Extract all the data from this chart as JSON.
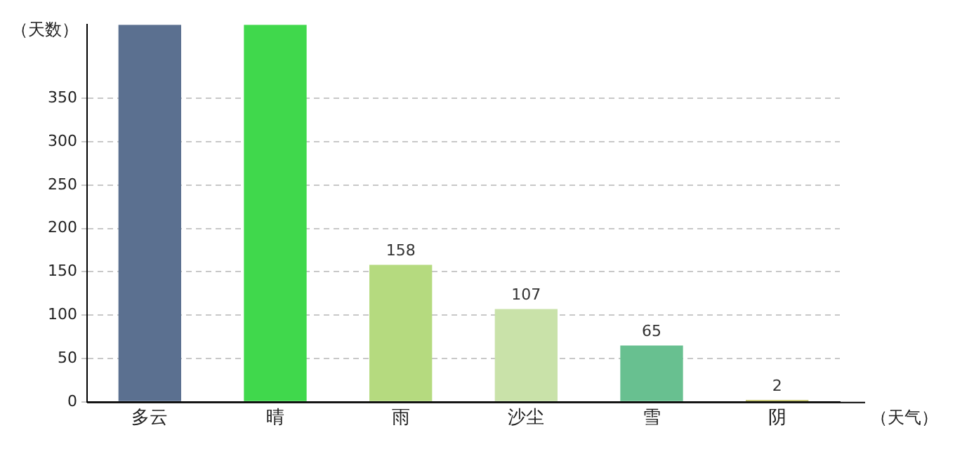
{
  "chart_data": {
    "type": "bar",
    "ylabel": "（天数）",
    "xlabel": "（天气）",
    "categories": [
      "多云",
      "晴",
      "雨",
      "沙尘",
      "雪",
      "阴"
    ],
    "values": [
      435,
      435,
      158,
      107,
      65,
      2
    ],
    "colors": [
      "#5b7090",
      "#40d84c",
      "#b5da7f",
      "#c9e2a9",
      "#68c090",
      "#b5b54a"
    ],
    "value_labels": [
      null,
      null,
      "158",
      "107",
      "65",
      "2"
    ],
    "ylim": [
      0,
      435
    ],
    "yticks": [
      0,
      50,
      100,
      150,
      200,
      250,
      300,
      350
    ],
    "grid": "y",
    "legend": false
  }
}
